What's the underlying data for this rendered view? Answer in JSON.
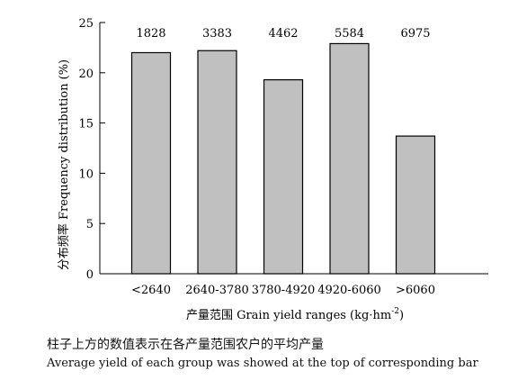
{
  "chart_data": {
    "type": "bar",
    "categories": [
      "<2640",
      "2640-3780",
      "3780-4920",
      "4920-6060",
      ">6060"
    ],
    "values": [
      22.0,
      22.2,
      19.3,
      22.9,
      13.7
    ],
    "data_labels": [
      "1828",
      "3383",
      "4462",
      "5584",
      "6975"
    ],
    "ylabel": "分布频率 Frequency distribution (%)",
    "xlabel_main": "产量范围 Grain yield ranges (kg·hm",
    "xlabel_sup": "-2",
    "xlabel_end": ")",
    "ylim": [
      0,
      25
    ],
    "yticks": [
      0,
      5,
      10,
      15,
      20,
      25
    ],
    "grid": false,
    "bar_color": "#c0c0c0",
    "bar_edge": "#000000"
  },
  "caption": {
    "chinese": "柱子上方的数值表示在各产量范围农户的平均产量",
    "english": "Average yield of each group was showed at the top of corresponding bar"
  }
}
